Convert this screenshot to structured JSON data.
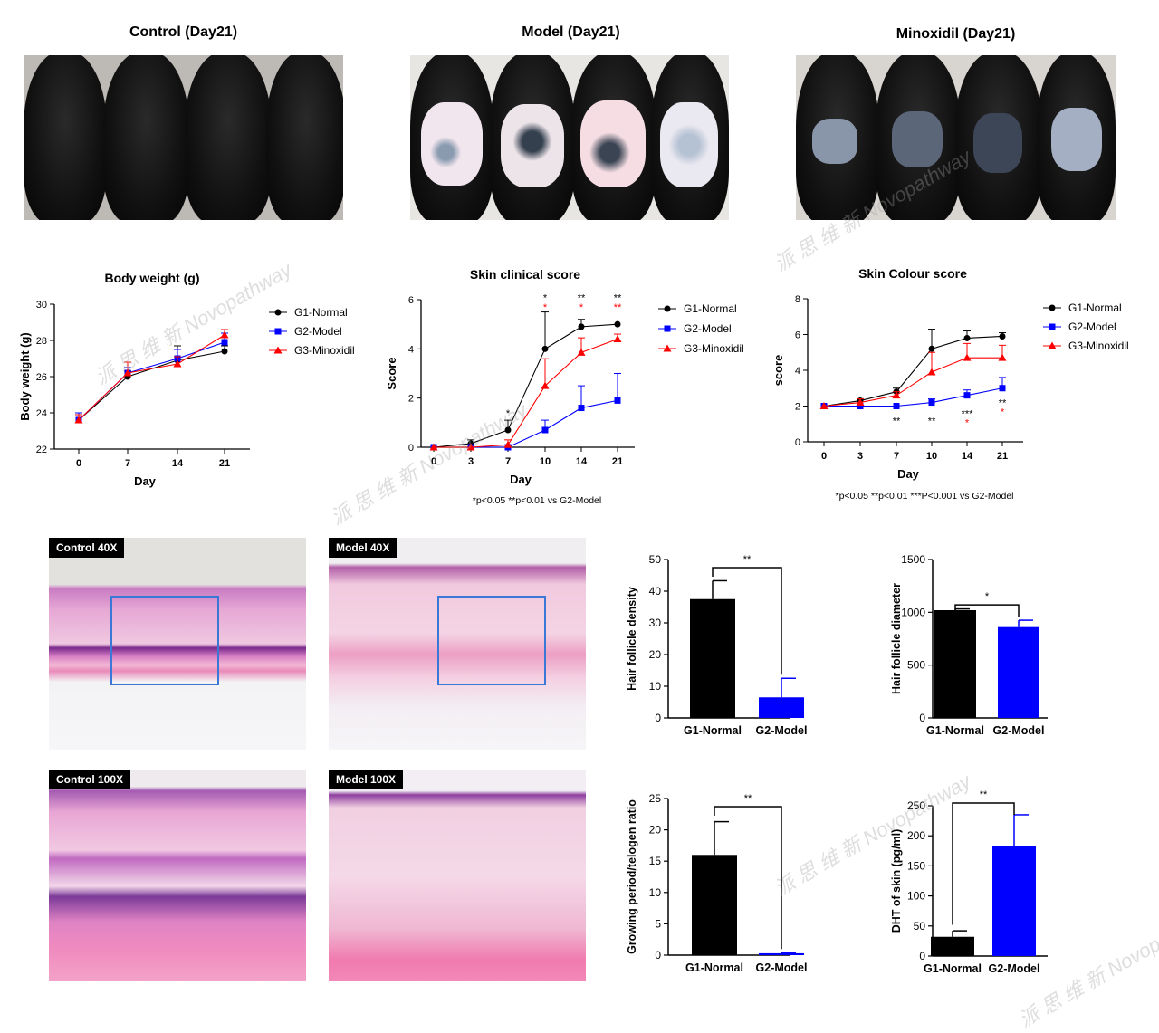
{
  "photos": [
    {
      "title": "Control (Day21)",
      "kind": "control"
    },
    {
      "title": "Model (Day21)",
      "kind": "model"
    },
    {
      "title": "Minoxidil (Day21)",
      "kind": "minoxidil"
    }
  ],
  "histology": [
    {
      "label": "Control  40X"
    },
    {
      "label": "Model 40X"
    },
    {
      "label": "Control  100X"
    },
    {
      "label": "Model 100X"
    }
  ],
  "watermark": {
    "cn": "派 思 维 新",
    "en": "Novopathway"
  },
  "chart_data": [
    {
      "id": "bodyweight",
      "type": "line",
      "title": "Body weight (g)",
      "xlabel": "Day",
      "ylabel": "Body weight (g)",
      "x": [
        0,
        7,
        14,
        21
      ],
      "xticks": [
        "0",
        "7",
        "14",
        "21"
      ],
      "ylim": [
        22,
        30
      ],
      "yticks": [
        "22",
        "24",
        "26",
        "28",
        "30"
      ],
      "series": [
        {
          "name": "G1-Normal",
          "color": "#000000",
          "marker": "circle",
          "values": [
            23.6,
            26.0,
            26.9,
            27.4
          ],
          "err": [
            0.3,
            0.3,
            0.8,
            0.3
          ]
        },
        {
          "name": "G2-Model",
          "color": "#0000ff",
          "marker": "square",
          "values": [
            23.6,
            26.2,
            27.0,
            27.9
          ],
          "err": [
            0.4,
            0.3,
            0.5,
            0.5
          ]
        },
        {
          "name": "G3-Minoxidil",
          "color": "#ff0000",
          "marker": "triangle",
          "values": [
            23.6,
            26.2,
            26.7,
            28.3
          ],
          "err": [
            0.3,
            0.6,
            0.4,
            0.3
          ]
        }
      ]
    },
    {
      "id": "clinical",
      "type": "line",
      "title": "Skin clinical score",
      "xlabel": "Day",
      "ylabel": "Score",
      "x": [
        0,
        3,
        7,
        10,
        14,
        21
      ],
      "xticks": [
        "0",
        "3",
        "7",
        "10",
        "14",
        "21"
      ],
      "ylim": [
        0,
        6
      ],
      "yticks": [
        "0",
        "2",
        "4",
        "6"
      ],
      "footnote": "*p<0.05 **p<0.01 vs G2-Model",
      "annotations": [
        {
          "x": 7,
          "text": "*",
          "color": "#000000",
          "y": 1.4
        },
        {
          "x": 10,
          "text": "*",
          "color": "#000000",
          "y": 6.1
        },
        {
          "x": 10,
          "text": "*",
          "color": "#ff0000",
          "y": 5.7
        },
        {
          "x": 14,
          "text": "**",
          "color": "#000000",
          "y": 6.1
        },
        {
          "x": 14,
          "text": "*",
          "color": "#ff0000",
          "y": 5.7
        },
        {
          "x": 21,
          "text": "**",
          "color": "#000000",
          "y": 6.1
        },
        {
          "x": 21,
          "text": "**",
          "color": "#ff0000",
          "y": 5.7
        }
      ],
      "series": [
        {
          "name": "G1-Normal",
          "color": "#000000",
          "marker": "circle",
          "values": [
            0,
            0.15,
            0.7,
            4.0,
            4.9,
            5.0
          ],
          "err": [
            0,
            0.15,
            0.4,
            1.5,
            0.3,
            0
          ]
        },
        {
          "name": "G2-Model",
          "color": "#0000ff",
          "marker": "square",
          "values": [
            0,
            0,
            0,
            0.7,
            1.6,
            1.9
          ],
          "err": [
            0,
            0,
            0,
            0.4,
            0.9,
            1.1
          ]
        },
        {
          "name": "G3-Minoxidil",
          "color": "#ff0000",
          "marker": "triangle",
          "values": [
            0,
            0,
            0.1,
            2.5,
            3.85,
            4.4
          ],
          "err": [
            0,
            0,
            0.2,
            1.1,
            0.6,
            0.2
          ]
        }
      ]
    },
    {
      "id": "colour",
      "type": "line",
      "title": "Skin Colour score",
      "xlabel": "Day",
      "ylabel": "score",
      "x": [
        0,
        3,
        7,
        10,
        14,
        21
      ],
      "xticks": [
        "0",
        "3",
        "7",
        "10",
        "14",
        "21"
      ],
      "ylim": [
        0,
        8
      ],
      "yticks": [
        "0",
        "2",
        "4",
        "6",
        "8"
      ],
      "footnote": "*p<0.05 **p<0.01 ***P<0.001 vs G2-Model",
      "annotations": [
        {
          "x": 7,
          "text": "**",
          "color": "#000000",
          "y": 1.2
        },
        {
          "x": 10,
          "text": "**",
          "color": "#000000",
          "y": 1.2
        },
        {
          "x": 14,
          "text": "***",
          "color": "#000000",
          "y": 1.6
        },
        {
          "x": 14,
          "text": "*",
          "color": "#ff0000",
          "y": 1.1
        },
        {
          "x": 21,
          "text": "**",
          "color": "#000000",
          "y": 2.2
        },
        {
          "x": 21,
          "text": "*",
          "color": "#ff0000",
          "y": 1.7
        }
      ],
      "series": [
        {
          "name": "G1-Normal",
          "color": "#000000",
          "marker": "circle",
          "values": [
            2.0,
            2.3,
            2.8,
            5.2,
            5.8,
            5.9
          ],
          "err": [
            0,
            0.2,
            0.2,
            1.1,
            0.4,
            0.2
          ]
        },
        {
          "name": "G2-Model",
          "color": "#0000ff",
          "marker": "square",
          "values": [
            2.0,
            2.0,
            2.0,
            2.2,
            2.6,
            3.0
          ],
          "err": [
            0,
            0,
            0,
            0.2,
            0.3,
            0.6
          ]
        },
        {
          "name": "G3-Minoxidil",
          "color": "#ff0000",
          "marker": "triangle",
          "values": [
            2.0,
            2.2,
            2.6,
            3.9,
            4.7,
            4.7
          ],
          "err": [
            0,
            0.2,
            0.2,
            1.1,
            0.8,
            0.7
          ]
        }
      ]
    },
    {
      "id": "density",
      "type": "bar",
      "ylabel": "Hair follicle density",
      "categories": [
        "G1-Normal",
        "G2-Model"
      ],
      "colors": [
        "#000000",
        "#0000ff"
      ],
      "values": [
        37.5,
        6.5
      ],
      "err": [
        5.8,
        6.0
      ],
      "ylim": [
        0,
        50
      ],
      "yticks": [
        "0",
        "10",
        "20",
        "30",
        "40",
        "50"
      ],
      "significance": "**"
    },
    {
      "id": "diameter",
      "type": "bar",
      "ylabel": "Hair follicle diameter",
      "categories": [
        "G1-Normal",
        "G2-Model"
      ],
      "colors": [
        "#000000",
        "#0000ff"
      ],
      "values": [
        1020,
        860
      ],
      "err": [
        12,
        65
      ],
      "ylim": [
        0,
        1500
      ],
      "yticks": [
        "0",
        "500",
        "1000",
        "1500"
      ],
      "significance": "*"
    },
    {
      "id": "ratio",
      "type": "bar",
      "ylabel": "Growing period/telogen ratio",
      "categories": [
        "G1-Normal",
        "G2-Model"
      ],
      "colors": [
        "#000000",
        "#0000ff"
      ],
      "values": [
        16.0,
        0.3
      ],
      "err": [
        5.3,
        0.1
      ],
      "ylim": [
        0,
        25
      ],
      "yticks": [
        "0",
        "5",
        "10",
        "15",
        "20",
        "25"
      ],
      "significance": "**"
    },
    {
      "id": "dht",
      "type": "bar",
      "ylabel": "DHT of skin (pg/ml)",
      "categories": [
        "G1-Normal",
        "G2-Model"
      ],
      "colors": [
        "#000000",
        "#0000ff"
      ],
      "values": [
        32,
        183
      ],
      "err": [
        10,
        52
      ],
      "ylim": [
        0,
        250
      ],
      "yticks": [
        "0",
        "50",
        "100",
        "150",
        "200",
        "250"
      ],
      "significance": "**"
    }
  ]
}
